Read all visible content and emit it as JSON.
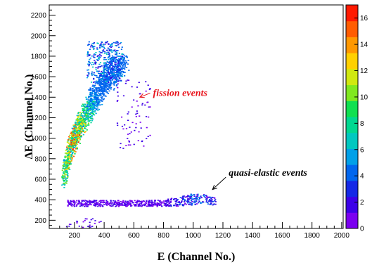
{
  "chart_data": {
    "type": "heatmap",
    "xlabel": "E (Channel No.)",
    "ylabel": "ΔE (Channel No.)",
    "xlim": [
      30,
      2010
    ],
    "ylim": [
      120,
      2300
    ],
    "x_ticks": [
      200,
      400,
      600,
      800,
      1000,
      1200,
      1400,
      1600,
      1800,
      2000
    ],
    "y_ticks": [
      200,
      400,
      600,
      800,
      1000,
      1200,
      1400,
      1600,
      1800,
      2000,
      2200
    ],
    "colorbar": {
      "range": [
        0,
        17
      ],
      "ticks": [
        0,
        2,
        4,
        6,
        8,
        10,
        12,
        14,
        16
      ],
      "colors": [
        "#7b00f0",
        "#3c00e8",
        "#1428e6",
        "#0066ee",
        "#00a0e8",
        "#00c8c0",
        "#00d890",
        "#10e050",
        "#80e820",
        "#d0e810",
        "#ffd000",
        "#ff9800",
        "#ff5c00",
        "#ff1a00"
      ]
    },
    "clusters": [
      {
        "region": "fission band",
        "E_range": [
          120,
          600
        ],
        "dE_range": [
          550,
          1950
        ],
        "max_count": 16
      },
      {
        "region": "quasi-elastic",
        "E_range": [
          150,
          1150
        ],
        "dE_range": [
          330,
          490
        ],
        "max_count": 4
      },
      {
        "region": "low energy tail",
        "E_range": [
          130,
          400
        ],
        "dE_range": [
          130,
          220
        ],
        "max_count": 1
      }
    ],
    "annotations": [
      {
        "text": "fission events",
        "color": "#e8141c",
        "arrow_from": [
          710,
          1440
        ],
        "arrow_to": [
          640,
          1400
        ]
      },
      {
        "text": "quasi-elastic events",
        "color": "#000000",
        "arrow_from": [
          1220,
          620
        ],
        "arrow_to": [
          1130,
          500
        ]
      }
    ]
  }
}
